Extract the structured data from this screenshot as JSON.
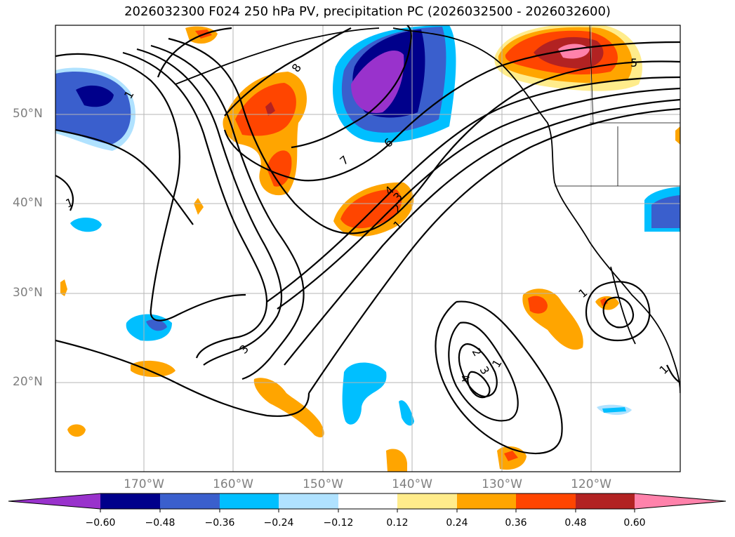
{
  "title": "2026032300 F024 250 hPa PV, precipitation PC (2026032500 - 2026032600)",
  "lat_labels": [
    "50°N",
    "40°N",
    "30°N",
    "20°N"
  ],
  "lon_labels": [
    "170°W",
    "160°W",
    "150°W",
    "140°W",
    "130°W",
    "120°W"
  ],
  "colorbar": {
    "ticks": [
      "−0.60",
      "−0.48",
      "−0.36",
      "−0.24",
      "−0.12",
      "0.12",
      "0.24",
      "0.36",
      "0.48",
      "0.60"
    ],
    "colors": [
      "#9932cc",
      "#00008b",
      "#3a5fcd",
      "#00bfff",
      "#b0e2ff",
      "#ffffff",
      "#ffec8b",
      "#ffa500",
      "#ff4500",
      "#b22222",
      "#ff82ab"
    ]
  },
  "contour_labels": [
    "1",
    "8",
    "7",
    "6",
    "5",
    "4",
    "3",
    "2",
    "1",
    "1",
    "3",
    "2",
    "3",
    "4",
    "1",
    "1",
    "1"
  ]
}
